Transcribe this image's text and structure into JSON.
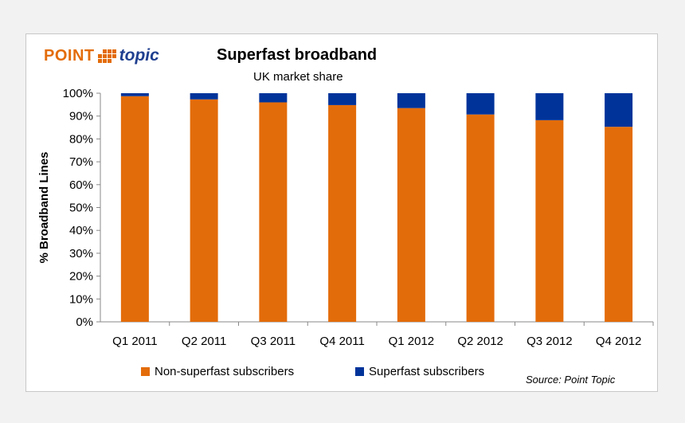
{
  "logo": {
    "brand_left": "POINT",
    "brand_right": "topic"
  },
  "chart_data": {
    "type": "bar",
    "stacked": true,
    "title": "Superfast broadband",
    "subtitle": "UK market share",
    "ylabel": "% Broadband Lines",
    "xlabel": "",
    "ylim": [
      0,
      100
    ],
    "yticks": [
      "0%",
      "10%",
      "20%",
      "30%",
      "40%",
      "50%",
      "60%",
      "70%",
      "80%",
      "90%",
      "100%"
    ],
    "categories": [
      "Q1 2011",
      "Q2 2011",
      "Q3 2011",
      "Q4 2011",
      "Q1 2012",
      "Q2 2012",
      "Q3 2012",
      "Q4 2012"
    ],
    "series": [
      {
        "name": "Non-superfast subscribers",
        "color": "#e36c0a",
        "values": [
          98.7,
          97.3,
          96.0,
          94.8,
          93.5,
          90.7,
          88.2,
          85.3
        ]
      },
      {
        "name": "Superfast subscribers",
        "color": "#00339a",
        "values": [
          1.3,
          2.7,
          4.0,
          5.2,
          6.5,
          9.3,
          11.8,
          14.7
        ]
      }
    ],
    "grid": false,
    "legend": "bottom",
    "source": "Source: Point Topic"
  }
}
